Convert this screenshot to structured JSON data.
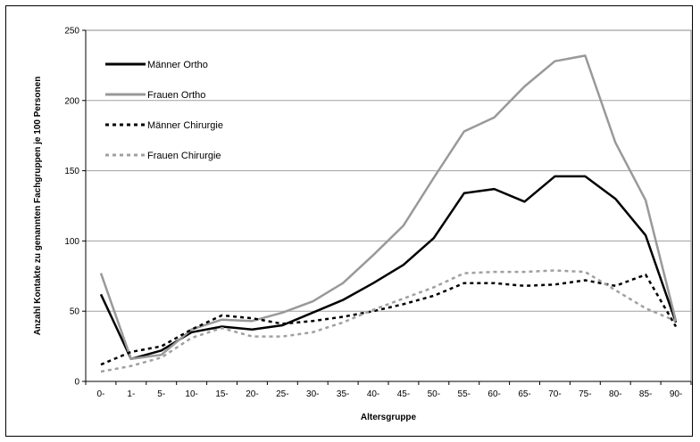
{
  "chart_data": {
    "type": "line",
    "title": "",
    "xlabel": "Altersgruppe",
    "ylabel": "Anzahl Kontakte zu genannten Fachgruppen je 100 Personen",
    "ylim": [
      0,
      250
    ],
    "yticks": [
      0,
      50,
      100,
      150,
      200,
      250
    ],
    "grid": "horizontal",
    "legend_position": "top-left",
    "categories": [
      "0-",
      "1-",
      "5-",
      "10-",
      "15-",
      "20-",
      "25-",
      "30-",
      "35-",
      "40-",
      "45-",
      "50-",
      "55-",
      "60-",
      "65-",
      "70-",
      "75-",
      "80-",
      "85-",
      "90-"
    ],
    "series": [
      {
        "name": "Männer Ortho",
        "color": "#000000",
        "style": "solid",
        "values": [
          62,
          16,
          22,
          35,
          39,
          37,
          40,
          49,
          58,
          70,
          83,
          102,
          134,
          137,
          128,
          146,
          146,
          130,
          104,
          42
        ]
      },
      {
        "name": "Frauen Ortho",
        "color": "#999999",
        "style": "solid",
        "values": [
          77,
          16,
          19,
          37,
          44,
          43,
          49,
          57,
          70,
          90,
          111,
          145,
          178,
          188,
          210,
          228,
          232,
          170,
          129,
          43
        ]
      },
      {
        "name": "Männer Chirurgie",
        "color": "#000000",
        "style": "dashed",
        "values": [
          12,
          21,
          25,
          37,
          47,
          45,
          41,
          43,
          46,
          50,
          55,
          61,
          70,
          70,
          68,
          69,
          72,
          68,
          76,
          39
        ]
      },
      {
        "name": "Frauen Chirurgie",
        "color": "#a0a0a0",
        "style": "dashed",
        "values": [
          7,
          11,
          17,
          31,
          38,
          32,
          32,
          35,
          42,
          51,
          59,
          67,
          77,
          78,
          78,
          79,
          78,
          65,
          52,
          43
        ]
      }
    ]
  }
}
